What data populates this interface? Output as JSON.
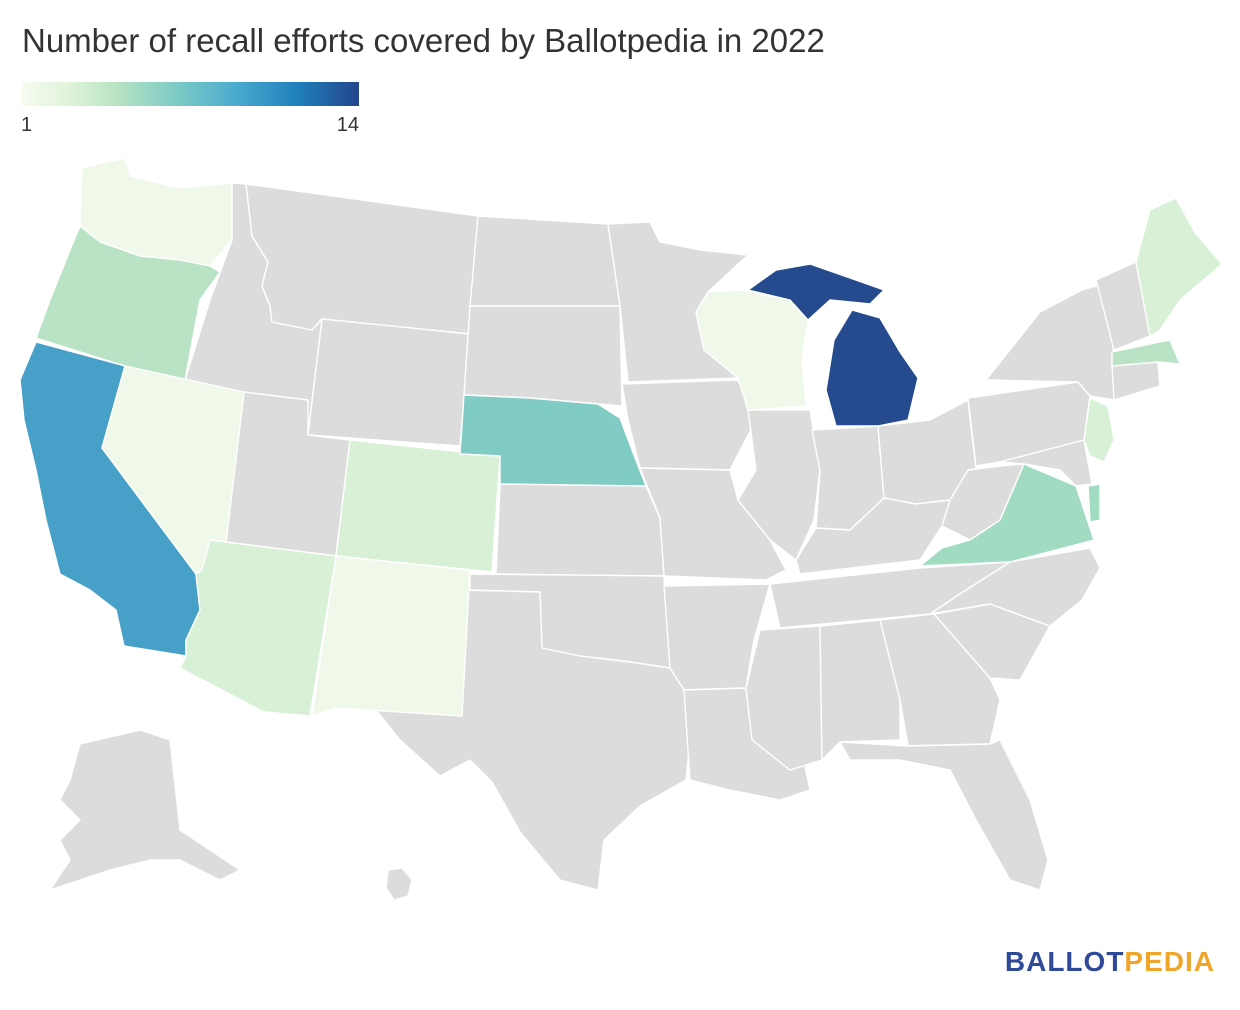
{
  "title": "Number of recall efforts covered by Ballotpedia in 2022",
  "legend": {
    "min_label": "1",
    "max_label": "14"
  },
  "colors": {
    "no_data": "#dcdcdc",
    "scale": [
      "#f7fcf0",
      "#e0f3db",
      "#b9e3c4",
      "#7ccbc5",
      "#4aa9cf",
      "#1f7fbb",
      "#23458c"
    ]
  },
  "map_states": [
    {
      "state": "Washington",
      "shade": "#eff8e9"
    },
    {
      "state": "Oregon",
      "shade": "#b9e3c4"
    },
    {
      "state": "California",
      "shade": "#46a0c7"
    },
    {
      "state": "Nevada",
      "shade": "#eff8e9"
    },
    {
      "state": "Arizona",
      "shade": "#d7f0d6"
    },
    {
      "state": "Colorado",
      "shade": "#d7f0d6"
    },
    {
      "state": "New Mexico",
      "shade": "#eff8e9"
    },
    {
      "state": "Nebraska",
      "shade": "#80cbc3"
    },
    {
      "state": "Wisconsin",
      "shade": "#eff8e9"
    },
    {
      "state": "Michigan",
      "shade": "#254a8d"
    },
    {
      "state": "Virginia",
      "shade": "#a1dbc2"
    },
    {
      "state": "Delaware",
      "shade": "#a1dbc2"
    },
    {
      "state": "New Jersey",
      "shade": "#d7f0d6"
    },
    {
      "state": "Massachusetts",
      "shade": "#b9e3c4"
    },
    {
      "state": "Maine",
      "shade": "#d7f0d6"
    }
  ],
  "logo": {
    "part1": "BALLOT",
    "part2": "PEDIA"
  }
}
